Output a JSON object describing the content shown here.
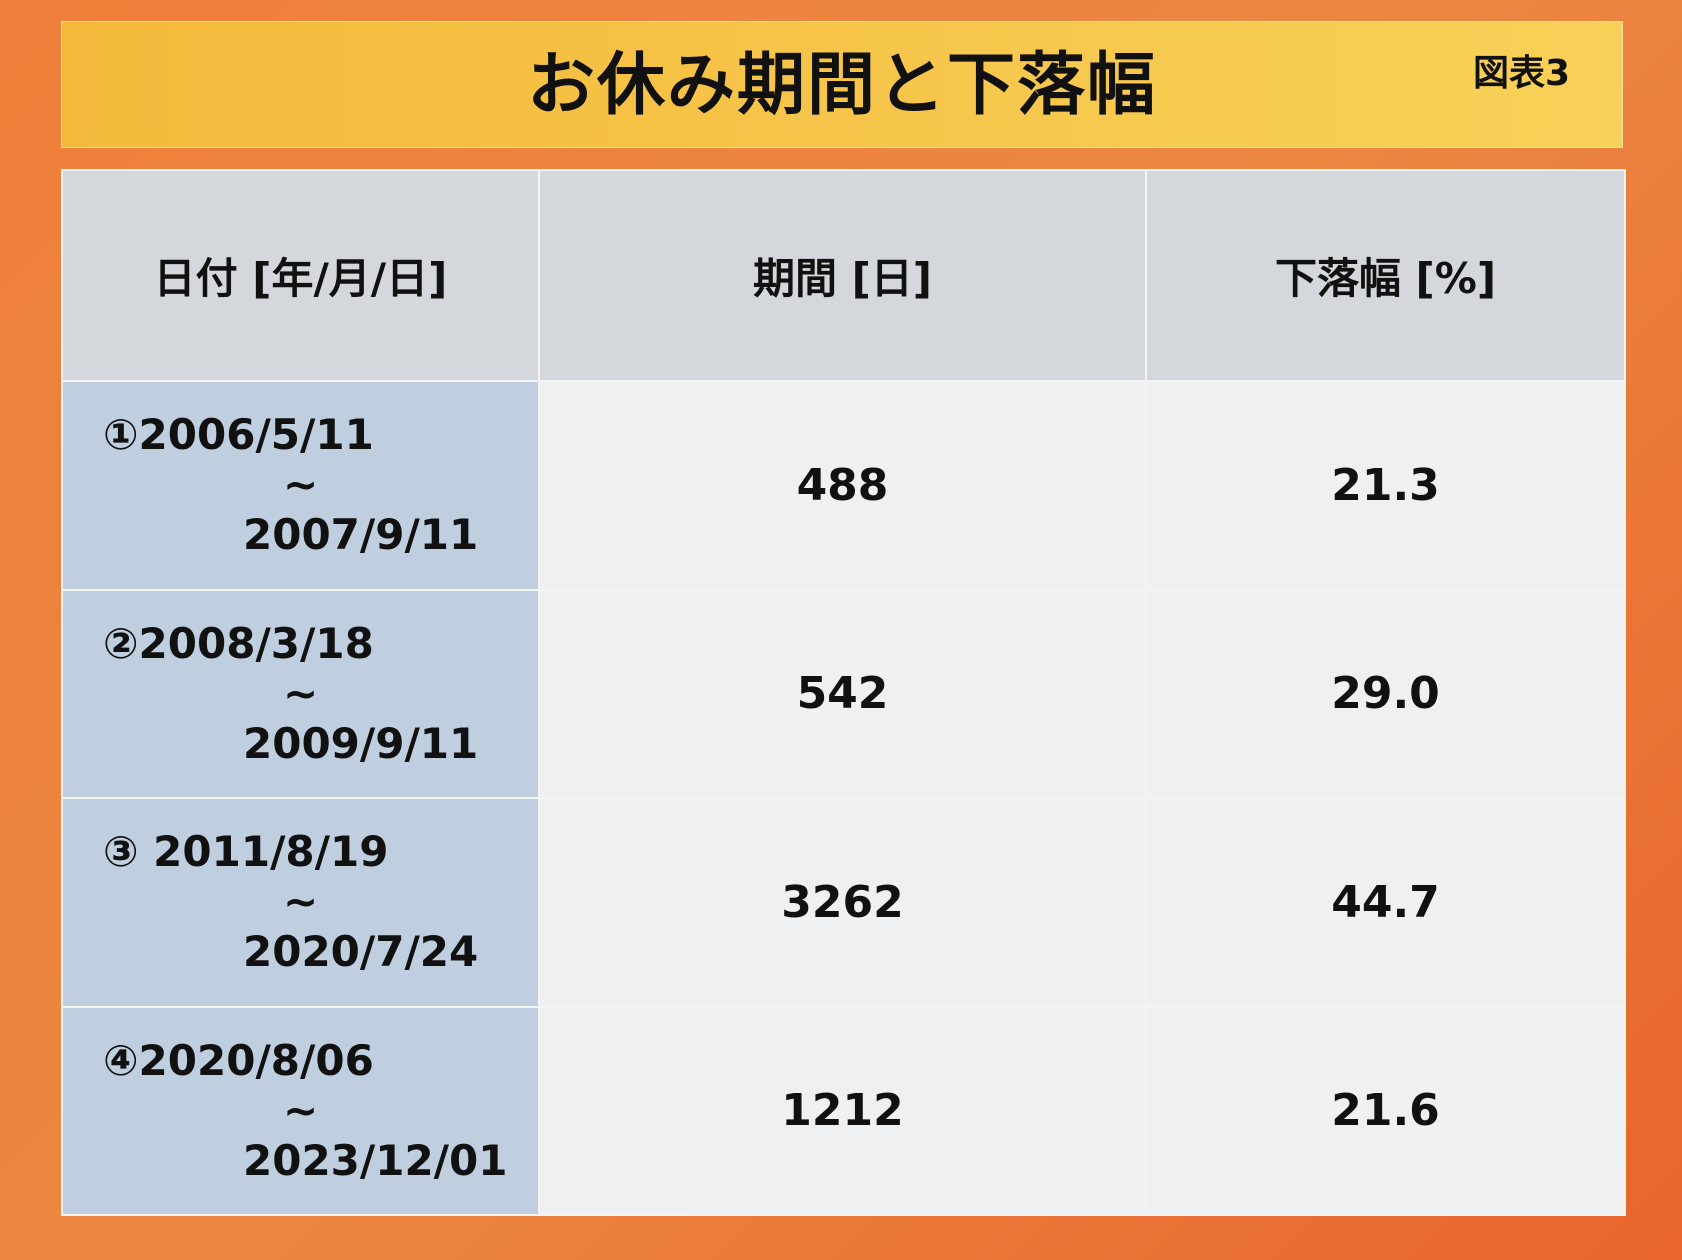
{
  "header": {
    "title": "お休み期間と下落幅",
    "tag": "図表3"
  },
  "table": {
    "columns": [
      "日付 [年/月/日]",
      "期間 [日]",
      "下落幅 [%]"
    ],
    "rows": [
      [
        [
          "①2006/5/11",
          "~",
          "2007/9/11"
        ],
        "488",
        "21.3"
      ],
      [
        [
          "②2008/3/18",
          "~",
          "2009/9/11"
        ],
        "542",
        "29.0"
      ],
      [
        [
          "③ 2011/8/19",
          "~",
          "2020/7/24"
        ],
        "3262",
        "44.7"
      ],
      [
        [
          "④2020/8/06",
          "~",
          "2023/12/01"
        ],
        "1212",
        "21.6"
      ]
    ]
  }
}
